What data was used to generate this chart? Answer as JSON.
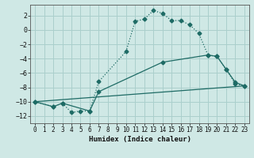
{
  "xlabel": "Humidex (Indice chaleur)",
  "background_color": "#cfe8e5",
  "grid_color": "#aacfcc",
  "line_color": "#1e6b65",
  "xlim": [
    -0.5,
    23.5
  ],
  "ylim": [
    -13.0,
    3.5
  ],
  "xticks": [
    0,
    1,
    2,
    3,
    4,
    5,
    6,
    7,
    8,
    9,
    10,
    11,
    12,
    13,
    14,
    15,
    16,
    17,
    18,
    19,
    20,
    21,
    22,
    23
  ],
  "yticks": [
    -12,
    -10,
    -8,
    -6,
    -4,
    -2,
    0,
    2
  ],
  "line1_x": [
    0,
    2,
    3,
    4,
    5,
    6,
    7,
    10,
    11,
    12,
    13,
    14,
    15,
    16,
    17,
    18,
    19,
    20,
    21,
    22,
    23
  ],
  "line1_y": [
    -10.0,
    -10.7,
    -10.2,
    -11.5,
    -11.3,
    -11.3,
    -7.2,
    -3.0,
    1.2,
    1.5,
    2.7,
    2.3,
    1.3,
    1.3,
    0.7,
    -0.5,
    -3.5,
    -3.7,
    -5.5,
    -7.5,
    -7.8
  ],
  "line2_x": [
    0,
    23
  ],
  "line2_y": [
    -10.0,
    -7.8
  ],
  "line3_x": [
    0,
    2,
    3,
    6,
    7,
    14,
    19,
    20,
    21,
    22,
    23
  ],
  "line3_y": [
    -10.0,
    -10.7,
    -10.2,
    -11.3,
    -8.6,
    -4.5,
    -3.5,
    -3.7,
    -5.5,
    -7.3,
    -7.8
  ]
}
